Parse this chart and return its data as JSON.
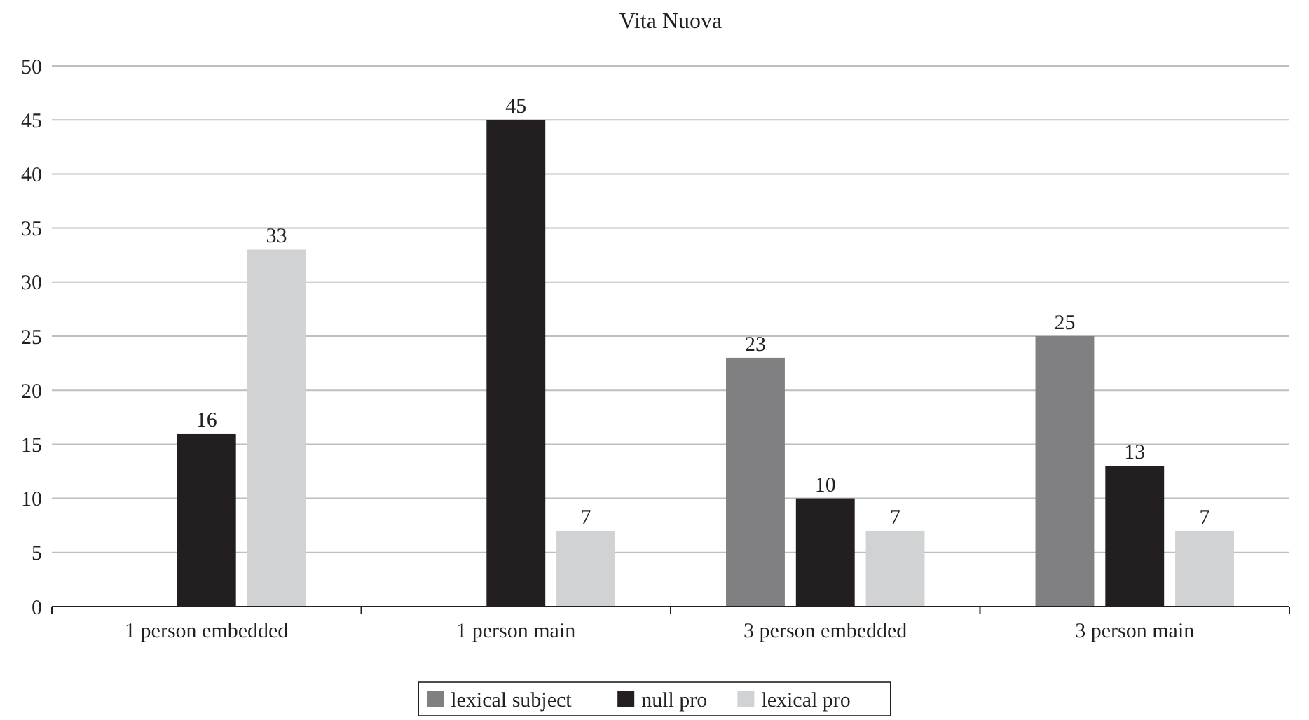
{
  "chart_data": {
    "type": "bar",
    "title": "Vita Nuova",
    "categories": [
      "1 person embedded",
      "1 person main",
      "3 person embedded",
      "3 person main"
    ],
    "series": [
      {
        "name": "lexical subject",
        "color": "#808083",
        "values": [
          null,
          null,
          23,
          25
        ]
      },
      {
        "name": "null pro",
        "color": "#231f20",
        "values": [
          16,
          45,
          10,
          13
        ]
      },
      {
        "name": "lexical pro",
        "color": "#d1d2d4",
        "values": [
          33,
          7,
          7,
          7
        ]
      }
    ],
    "ylim": [
      0,
      50
    ],
    "yticks": [
      0,
      5,
      10,
      15,
      20,
      25,
      30,
      35,
      40,
      45,
      50
    ],
    "grid": "y",
    "data_labels": true,
    "legend": "bottom"
  }
}
